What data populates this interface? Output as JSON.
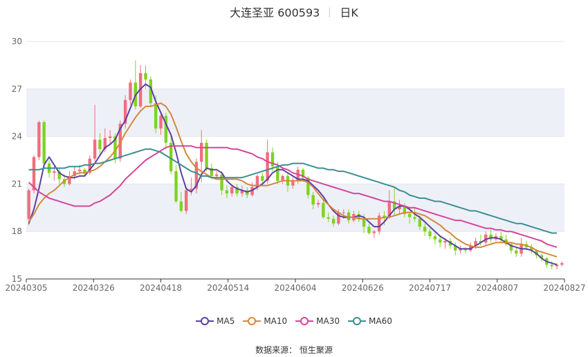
{
  "chart_data": {
    "type": "candlestick",
    "title": "大连圣亚 600593",
    "period": "日K",
    "ylim": [
      15,
      30
    ],
    "y_ticks": [
      15,
      18,
      21,
      24,
      27,
      30
    ],
    "x_tick_labels": [
      "20240305",
      "20240326",
      "20240418",
      "20240514",
      "20240604",
      "20240626",
      "20240717",
      "20240807",
      "20240827"
    ],
    "colors": {
      "up": "#f26d7d",
      "down": "#7ed321",
      "grid": "#e6e6e6",
      "band": "#eef0f8",
      "axis": "#333333",
      "text": "#666666"
    },
    "candles": [
      [
        18.8,
        20.6,
        18.4,
        20.7
      ],
      [
        20.6,
        22.7,
        20.4,
        22.8
      ],
      [
        22.7,
        24.9,
        22.5,
        25.0
      ],
      [
        24.9,
        22.3,
        22.0,
        25.0
      ],
      [
        22.3,
        21.7,
        21.4,
        22.5
      ],
      [
        21.7,
        21.8,
        21.2,
        22.1
      ],
      [
        21.8,
        21.3,
        21.0,
        22.0
      ],
      [
        21.3,
        21.0,
        20.8,
        21.6
      ],
      [
        21.0,
        21.5,
        20.9,
        21.8
      ],
      [
        21.5,
        21.8,
        21.3,
        22.1
      ],
      [
        21.8,
        21.9,
        21.6,
        22.2
      ],
      [
        21.9,
        21.7,
        21.5,
        22.0
      ],
      [
        21.7,
        22.6,
        21.6,
        22.8
      ],
      [
        22.6,
        23.8,
        22.4,
        26.0
      ],
      [
        23.8,
        23.2,
        22.8,
        24.2
      ],
      [
        23.2,
        23.9,
        23.0,
        24.5
      ],
      [
        23.9,
        24.0,
        23.5,
        24.4
      ],
      [
        24.0,
        22.6,
        22.3,
        24.2
      ],
      [
        22.6,
        24.8,
        22.4,
        25.0
      ],
      [
        24.8,
        26.3,
        24.5,
        26.6
      ],
      [
        26.3,
        27.4,
        26.0,
        27.6
      ],
      [
        27.4,
        25.9,
        25.7,
        28.8
      ],
      [
        25.9,
        28.0,
        25.8,
        28.5
      ],
      [
        28.0,
        27.6,
        27.0,
        28.5
      ],
      [
        27.6,
        26.1,
        25.9,
        27.8
      ],
      [
        26.1,
        24.5,
        24.2,
        26.6
      ],
      [
        24.5,
        25.3,
        24.1,
        25.6
      ],
      [
        25.3,
        23.6,
        23.2,
        25.5
      ],
      [
        23.6,
        21.8,
        21.6,
        24.0
      ],
      [
        21.8,
        19.9,
        19.8,
        22.2
      ],
      [
        19.9,
        19.3,
        19.2,
        20.5
      ],
      [
        19.3,
        20.6,
        19.1,
        20.8
      ],
      [
        20.6,
        20.7,
        20.3,
        21.4
      ],
      [
        20.7,
        22.4,
        20.4,
        22.6
      ],
      [
        22.4,
        23.6,
        21.1,
        24.4
      ],
      [
        23.6,
        22.0,
        21.8,
        23.8
      ],
      [
        22.0,
        21.5,
        21.3,
        22.3
      ],
      [
        21.5,
        21.6,
        21.3,
        21.8
      ],
      [
        21.6,
        20.6,
        20.3,
        21.8
      ],
      [
        20.6,
        20.4,
        20.1,
        20.9
      ],
      [
        20.4,
        20.8,
        20.2,
        21.0
      ],
      [
        20.8,
        20.4,
        20.2,
        21.0
      ],
      [
        20.4,
        20.6,
        20.2,
        20.9
      ],
      [
        20.6,
        20.3,
        20.1,
        20.8
      ],
      [
        20.3,
        20.8,
        20.2,
        21.1
      ],
      [
        20.8,
        21.5,
        20.6,
        21.6
      ],
      [
        21.5,
        21.2,
        20.9,
        21.7
      ],
      [
        21.2,
        23.0,
        21.0,
        23.8
      ],
      [
        23.0,
        22.1,
        21.8,
        23.3
      ],
      [
        22.1,
        21.2,
        21.0,
        22.4
      ],
      [
        21.2,
        21.5,
        21.0,
        21.6
      ],
      [
        21.5,
        20.9,
        20.5,
        21.7
      ],
      [
        20.9,
        21.2,
        20.7,
        21.4
      ],
      [
        21.2,
        21.9,
        21.0,
        22.1
      ],
      [
        21.9,
        21.4,
        21.2,
        22.0
      ],
      [
        21.4,
        20.3,
        20.1,
        21.5
      ],
      [
        20.3,
        19.7,
        19.4,
        20.5
      ],
      [
        19.7,
        19.8,
        19.5,
        20.0
      ],
      [
        19.8,
        18.9,
        18.8,
        20.0
      ],
      [
        18.9,
        18.8,
        18.6,
        19.2
      ],
      [
        18.8,
        18.5,
        18.3,
        19.0
      ],
      [
        18.5,
        19.2,
        18.4,
        19.4
      ],
      [
        19.2,
        19.2,
        18.8,
        19.4
      ],
      [
        19.2,
        18.7,
        18.5,
        19.4
      ],
      [
        18.7,
        19.1,
        18.6,
        19.3
      ],
      [
        19.1,
        18.8,
        18.6,
        19.3
      ],
      [
        18.8,
        18.3,
        17.9,
        19.1
      ],
      [
        18.3,
        17.9,
        17.8,
        18.5
      ],
      [
        17.9,
        18.0,
        17.6,
        18.1
      ],
      [
        18.0,
        19.0,
        17.8,
        19.2
      ],
      [
        19.0,
        18.9,
        18.4,
        19.3
      ],
      [
        18.9,
        19.9,
        18.8,
        20.6
      ],
      [
        19.9,
        19.4,
        19.0,
        20.8
      ],
      [
        19.4,
        19.6,
        19.1,
        20.0
      ],
      [
        19.6,
        19.1,
        18.9,
        19.8
      ],
      [
        19.1,
        18.9,
        18.5,
        19.3
      ],
      [
        18.9,
        18.8,
        18.6,
        19.5
      ],
      [
        18.8,
        18.3,
        18.1,
        19.0
      ],
      [
        18.3,
        18.0,
        17.7,
        18.5
      ],
      [
        18.0,
        17.7,
        17.5,
        18.2
      ],
      [
        17.7,
        17.5,
        17.2,
        17.9
      ],
      [
        17.5,
        17.3,
        17.0,
        17.7
      ],
      [
        17.3,
        17.4,
        16.9,
        17.6
      ],
      [
        17.4,
        17.1,
        16.9,
        17.6
      ],
      [
        17.1,
        16.8,
        16.5,
        17.3
      ],
      [
        16.8,
        16.9,
        16.6,
        17.1
      ],
      [
        16.9,
        16.8,
        16.6,
        17.0
      ],
      [
        16.8,
        17.1,
        16.7,
        17.3
      ],
      [
        17.1,
        17.4,
        16.9,
        17.6
      ],
      [
        17.4,
        17.3,
        17.1,
        17.8
      ],
      [
        17.3,
        17.8,
        17.1,
        18.0
      ],
      [
        17.8,
        17.5,
        17.3,
        18.1
      ],
      [
        17.5,
        17.7,
        17.4,
        17.9
      ],
      [
        17.7,
        17.5,
        17.3,
        18.0
      ],
      [
        17.5,
        17.2,
        17.1,
        17.8
      ],
      [
        17.2,
        16.8,
        16.6,
        17.3
      ],
      [
        16.8,
        16.6,
        16.4,
        17.0
      ],
      [
        16.6,
        17.2,
        16.4,
        17.6
      ],
      [
        17.2,
        17.0,
        16.8,
        17.4
      ],
      [
        17.0,
        16.8,
        16.6,
        17.2
      ],
      [
        16.8,
        16.5,
        16.3,
        16.9
      ],
      [
        16.5,
        16.3,
        16.1,
        16.6
      ],
      [
        16.3,
        15.9,
        15.7,
        16.4
      ],
      [
        15.9,
        15.8,
        15.6,
        16.1
      ],
      [
        15.8,
        15.9,
        15.6,
        16.0
      ],
      [
        15.9,
        16.0,
        15.8,
        16.1
      ]
    ],
    "series": [
      {
        "name": "MA5",
        "color": "#5b3fa3",
        "values": [
          18.5,
          19.4,
          20.7,
          22.2,
          22.7,
          22.2,
          21.7,
          21.5,
          21.4,
          21.4,
          21.5,
          21.5,
          21.9,
          22.3,
          22.8,
          23.3,
          23.5,
          23.8,
          24.5,
          25.0,
          25.8,
          26.6,
          27.0,
          27.3,
          27.1,
          26.2,
          25.5,
          24.8,
          24.1,
          23.0,
          21.7,
          20.7,
          20.5,
          20.9,
          21.6,
          22.0,
          21.9,
          21.9,
          21.7,
          21.2,
          20.9,
          20.7,
          20.6,
          20.5,
          20.6,
          20.8,
          21.0,
          21.3,
          21.7,
          21.9,
          21.9,
          21.7,
          21.5,
          21.3,
          21.3,
          21.2,
          20.9,
          20.6,
          20.2,
          19.7,
          19.3,
          19.0,
          18.9,
          18.9,
          18.9,
          19.0,
          18.9,
          18.6,
          18.3,
          18.3,
          18.6,
          19.0,
          19.4,
          19.6,
          19.6,
          19.4,
          19.1,
          18.9,
          18.6,
          18.3,
          18.0,
          17.7,
          17.5,
          17.3,
          17.1,
          16.9,
          16.9,
          16.9,
          17.1,
          17.3,
          17.5,
          17.6,
          17.6,
          17.5,
          17.3,
          17.1,
          17.0,
          16.9,
          16.9,
          16.8,
          16.6,
          16.3,
          16.1,
          16.0,
          15.9
        ]
      },
      {
        "name": "MA10",
        "color": "#d4883a",
        "values": [
          18.6,
          19.1,
          19.7,
          20.1,
          20.4,
          20.6,
          20.9,
          21.2,
          21.4,
          21.6,
          21.7,
          21.7,
          21.8,
          21.9,
          22.1,
          22.4,
          22.7,
          23.1,
          23.6,
          24.2,
          24.7,
          25.2,
          25.6,
          25.9,
          25.9,
          26.0,
          26.1,
          25.9,
          25.4,
          24.6,
          23.7,
          22.9,
          22.4,
          22.0,
          21.8,
          21.6,
          21.4,
          21.3,
          21.3,
          21.3,
          21.3,
          21.3,
          21.2,
          21.0,
          20.9,
          20.9,
          20.9,
          20.9,
          21.0,
          21.1,
          21.2,
          21.2,
          21.2,
          21.2,
          21.2,
          21.1,
          20.8,
          20.4,
          20.0,
          19.7,
          19.4,
          19.2,
          19.0,
          18.9,
          18.9,
          18.8,
          18.8,
          18.8,
          18.8,
          18.8,
          18.9,
          18.9,
          19.0,
          19.1,
          19.2,
          19.2,
          19.2,
          19.1,
          19.0,
          18.8,
          18.6,
          18.4,
          18.1,
          17.9,
          17.6,
          17.4,
          17.2,
          17.1,
          17.0,
          17.0,
          17.1,
          17.2,
          17.3,
          17.3,
          17.3,
          17.3,
          17.2,
          17.2,
          17.1,
          17.0,
          16.8,
          16.7,
          16.6,
          16.5,
          16.4
        ]
      },
      {
        "name": "MA30",
        "color": "#d4459a",
        "values": [
          21.1,
          20.8,
          20.5,
          20.3,
          20.1,
          20.0,
          19.9,
          19.8,
          19.7,
          19.6,
          19.6,
          19.6,
          19.6,
          19.8,
          19.9,
          20.1,
          20.3,
          20.6,
          20.9,
          21.3,
          21.6,
          21.9,
          22.2,
          22.5,
          22.7,
          22.9,
          23.1,
          23.3,
          23.4,
          23.4,
          23.4,
          23.4,
          23.4,
          23.3,
          23.3,
          23.3,
          23.3,
          23.3,
          23.3,
          23.3,
          23.2,
          23.2,
          23.1,
          23.0,
          22.9,
          22.7,
          22.6,
          22.4,
          22.3,
          22.2,
          22.0,
          21.9,
          21.7,
          21.6,
          21.5,
          21.3,
          21.2,
          21.1,
          21.0,
          20.9,
          20.8,
          20.7,
          20.6,
          20.5,
          20.4,
          20.4,
          20.3,
          20.2,
          20.1,
          20.0,
          19.9,
          19.9,
          19.8,
          19.7,
          19.6,
          19.5,
          19.5,
          19.4,
          19.3,
          19.2,
          19.1,
          19.0,
          18.9,
          18.8,
          18.7,
          18.7,
          18.6,
          18.5,
          18.4,
          18.3,
          18.2,
          18.2,
          18.1,
          18.1,
          18.0,
          18.0,
          17.9,
          17.8,
          17.7,
          17.6,
          17.5,
          17.4,
          17.2,
          17.1,
          17.0
        ]
      },
      {
        "name": "MA60",
        "color": "#3a8f8f",
        "values": [
          21.9,
          21.9,
          21.9,
          22.0,
          22.0,
          22.0,
          22.0,
          22.0,
          22.1,
          22.1,
          22.1,
          22.2,
          22.2,
          22.3,
          22.3,
          22.4,
          22.5,
          22.6,
          22.7,
          22.8,
          22.9,
          23.0,
          23.1,
          23.2,
          23.2,
          23.1,
          23.0,
          22.8,
          22.6,
          22.4,
          22.2,
          22.0,
          21.8,
          21.7,
          21.5,
          21.5,
          21.4,
          21.4,
          21.4,
          21.4,
          21.4,
          21.4,
          21.4,
          21.5,
          21.6,
          21.7,
          21.8,
          21.9,
          22.0,
          22.1,
          22.2,
          22.2,
          22.3,
          22.3,
          22.3,
          22.2,
          22.1,
          22.0,
          22.0,
          21.9,
          21.9,
          21.8,
          21.8,
          21.7,
          21.6,
          21.5,
          21.4,
          21.3,
          21.2,
          21.1,
          21.0,
          20.9,
          20.8,
          20.6,
          20.5,
          20.3,
          20.2,
          20.1,
          20.1,
          20.0,
          19.9,
          19.9,
          19.8,
          19.7,
          19.6,
          19.5,
          19.4,
          19.3,
          19.3,
          19.2,
          19.1,
          19.0,
          18.9,
          18.8,
          18.7,
          18.6,
          18.5,
          18.5,
          18.4,
          18.3,
          18.2,
          18.1,
          18.0,
          17.9,
          17.9
        ]
      }
    ],
    "legend": [
      "MA5",
      "MA10",
      "MA30",
      "MA60"
    ],
    "legend_position": "bottom-center",
    "source": "数据来源： 恒生聚源"
  }
}
